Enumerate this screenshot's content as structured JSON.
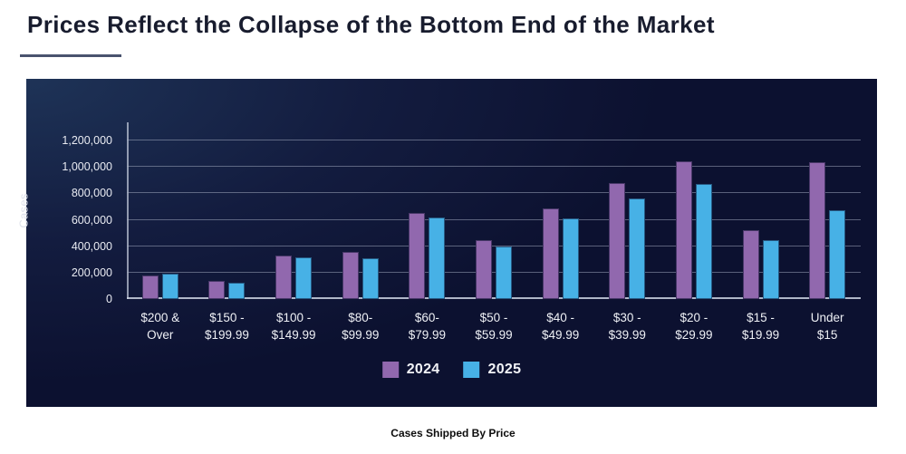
{
  "page": {
    "title": "Prices Reflect the Collapse of the Bottom End of the Market",
    "caption": "Cases Shipped By Price"
  },
  "chart_data": {
    "type": "bar",
    "title": "",
    "xlabel": "",
    "ylabel": "Cases",
    "ylim": [
      0,
      1200000
    ],
    "grid": true,
    "legend_position": "bottom",
    "categories": [
      "$200 & Over",
      "$150 - $199.99",
      "$100 - $149.99",
      "$80- $99.99",
      "$60- $79.99",
      "$50 - $59.99",
      "$40 - $49.99",
      "$30 - $39.99",
      "$20 - $29.99",
      "$15 - $19.99",
      "Under $15"
    ],
    "category_lines": [
      [
        "$200 &",
        "Over"
      ],
      [
        "$150 -",
        "$199.99"
      ],
      [
        "$100 -",
        "$149.99"
      ],
      [
        "$80-",
        "$99.99"
      ],
      [
        "$60-",
        "$79.99"
      ],
      [
        "$50 -",
        "$59.99"
      ],
      [
        "$40 -",
        "$49.99"
      ],
      [
        "$30 -",
        "$39.99"
      ],
      [
        "$20 -",
        "$29.99"
      ],
      [
        "$15 -",
        "$19.99"
      ],
      [
        "Under",
        "$15"
      ]
    ],
    "yticks": [
      {
        "value": 0,
        "label": "0"
      },
      {
        "value": 200000,
        "label": "200,000"
      },
      {
        "value": 400000,
        "label": "400,000"
      },
      {
        "value": 600000,
        "label": "600,000"
      },
      {
        "value": 800000,
        "label": "800,000"
      },
      {
        "value": 1000000,
        "label": "1,000,000"
      },
      {
        "value": 1200000,
        "label": "1,200,000"
      }
    ],
    "series": [
      {
        "name": "2024",
        "color": "#9168ae",
        "values": [
          175000,
          135000,
          330000,
          355000,
          650000,
          445000,
          685000,
          880000,
          1040000,
          520000,
          1035000
        ]
      },
      {
        "name": "2025",
        "color": "#47b1e6",
        "values": [
          195000,
          125000,
          315000,
          310000,
          615000,
          400000,
          610000,
          760000,
          870000,
          445000,
          675000
        ]
      }
    ],
    "colors": {
      "panel_background": "#0c1130",
      "panel_glow": "#1e3357",
      "gridline": "#a8afc4",
      "tick_text": "#e9ebf2",
      "title_text": "#181c2e"
    }
  }
}
